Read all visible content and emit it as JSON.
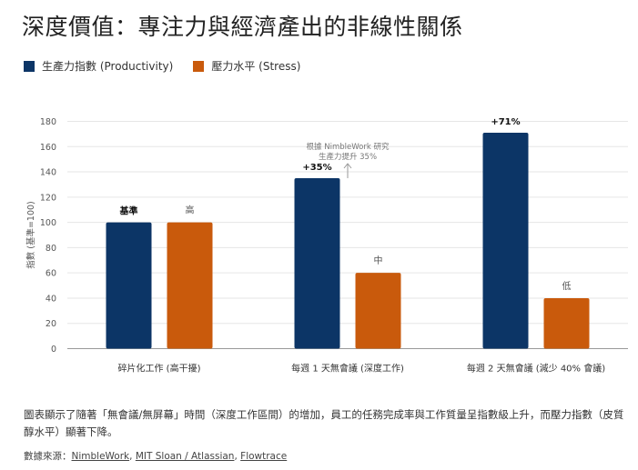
{
  "title": "深度價值：專注力與經濟產出的非線性關係",
  "legend": [
    {
      "label": "生產力指數 (Productivity)",
      "color": "#0c3566"
    },
    {
      "label": "壓力水平 (Stress)",
      "color": "#c95a0c"
    }
  ],
  "chart_data": {
    "type": "bar",
    "ylabel": "指數 (基準=100)",
    "ylim": [
      0,
      180
    ],
    "yticks": [
      0,
      20,
      40,
      60,
      80,
      100,
      120,
      140,
      160,
      180
    ],
    "categories": [
      "碎片化工作 (高干擾)",
      "每週 1 天無會議 (深度工作)",
      "每週 2 天無會議 (減少 40% 會議)"
    ],
    "series": [
      {
        "name": "生產力指數 (Productivity)",
        "color": "#0c3566",
        "values": [
          100,
          135,
          171
        ],
        "labels": [
          "基準",
          "+35%",
          "+71%"
        ]
      },
      {
        "name": "壓力水平 (Stress)",
        "color": "#c95a0c",
        "values": [
          100,
          60,
          40
        ],
        "labels": [
          "高",
          "中",
          "低"
        ]
      }
    ],
    "annotation": {
      "lines": [
        "根據 NimbleWork 研究",
        "生產力提升 35%"
      ],
      "category_index": 1
    }
  },
  "note": "圖表顯示了隨著「無會議/無屏幕」時間（深度工作區間）的增加，員工的任務完成率與工作質量呈指數級上升，而壓力指數（皮質醇水平）顯著下降。",
  "source": {
    "prefix": "數據來源：",
    "links": [
      "NimbleWork",
      "MIT Sloan / Atlassian",
      "Flowtrace"
    ]
  }
}
